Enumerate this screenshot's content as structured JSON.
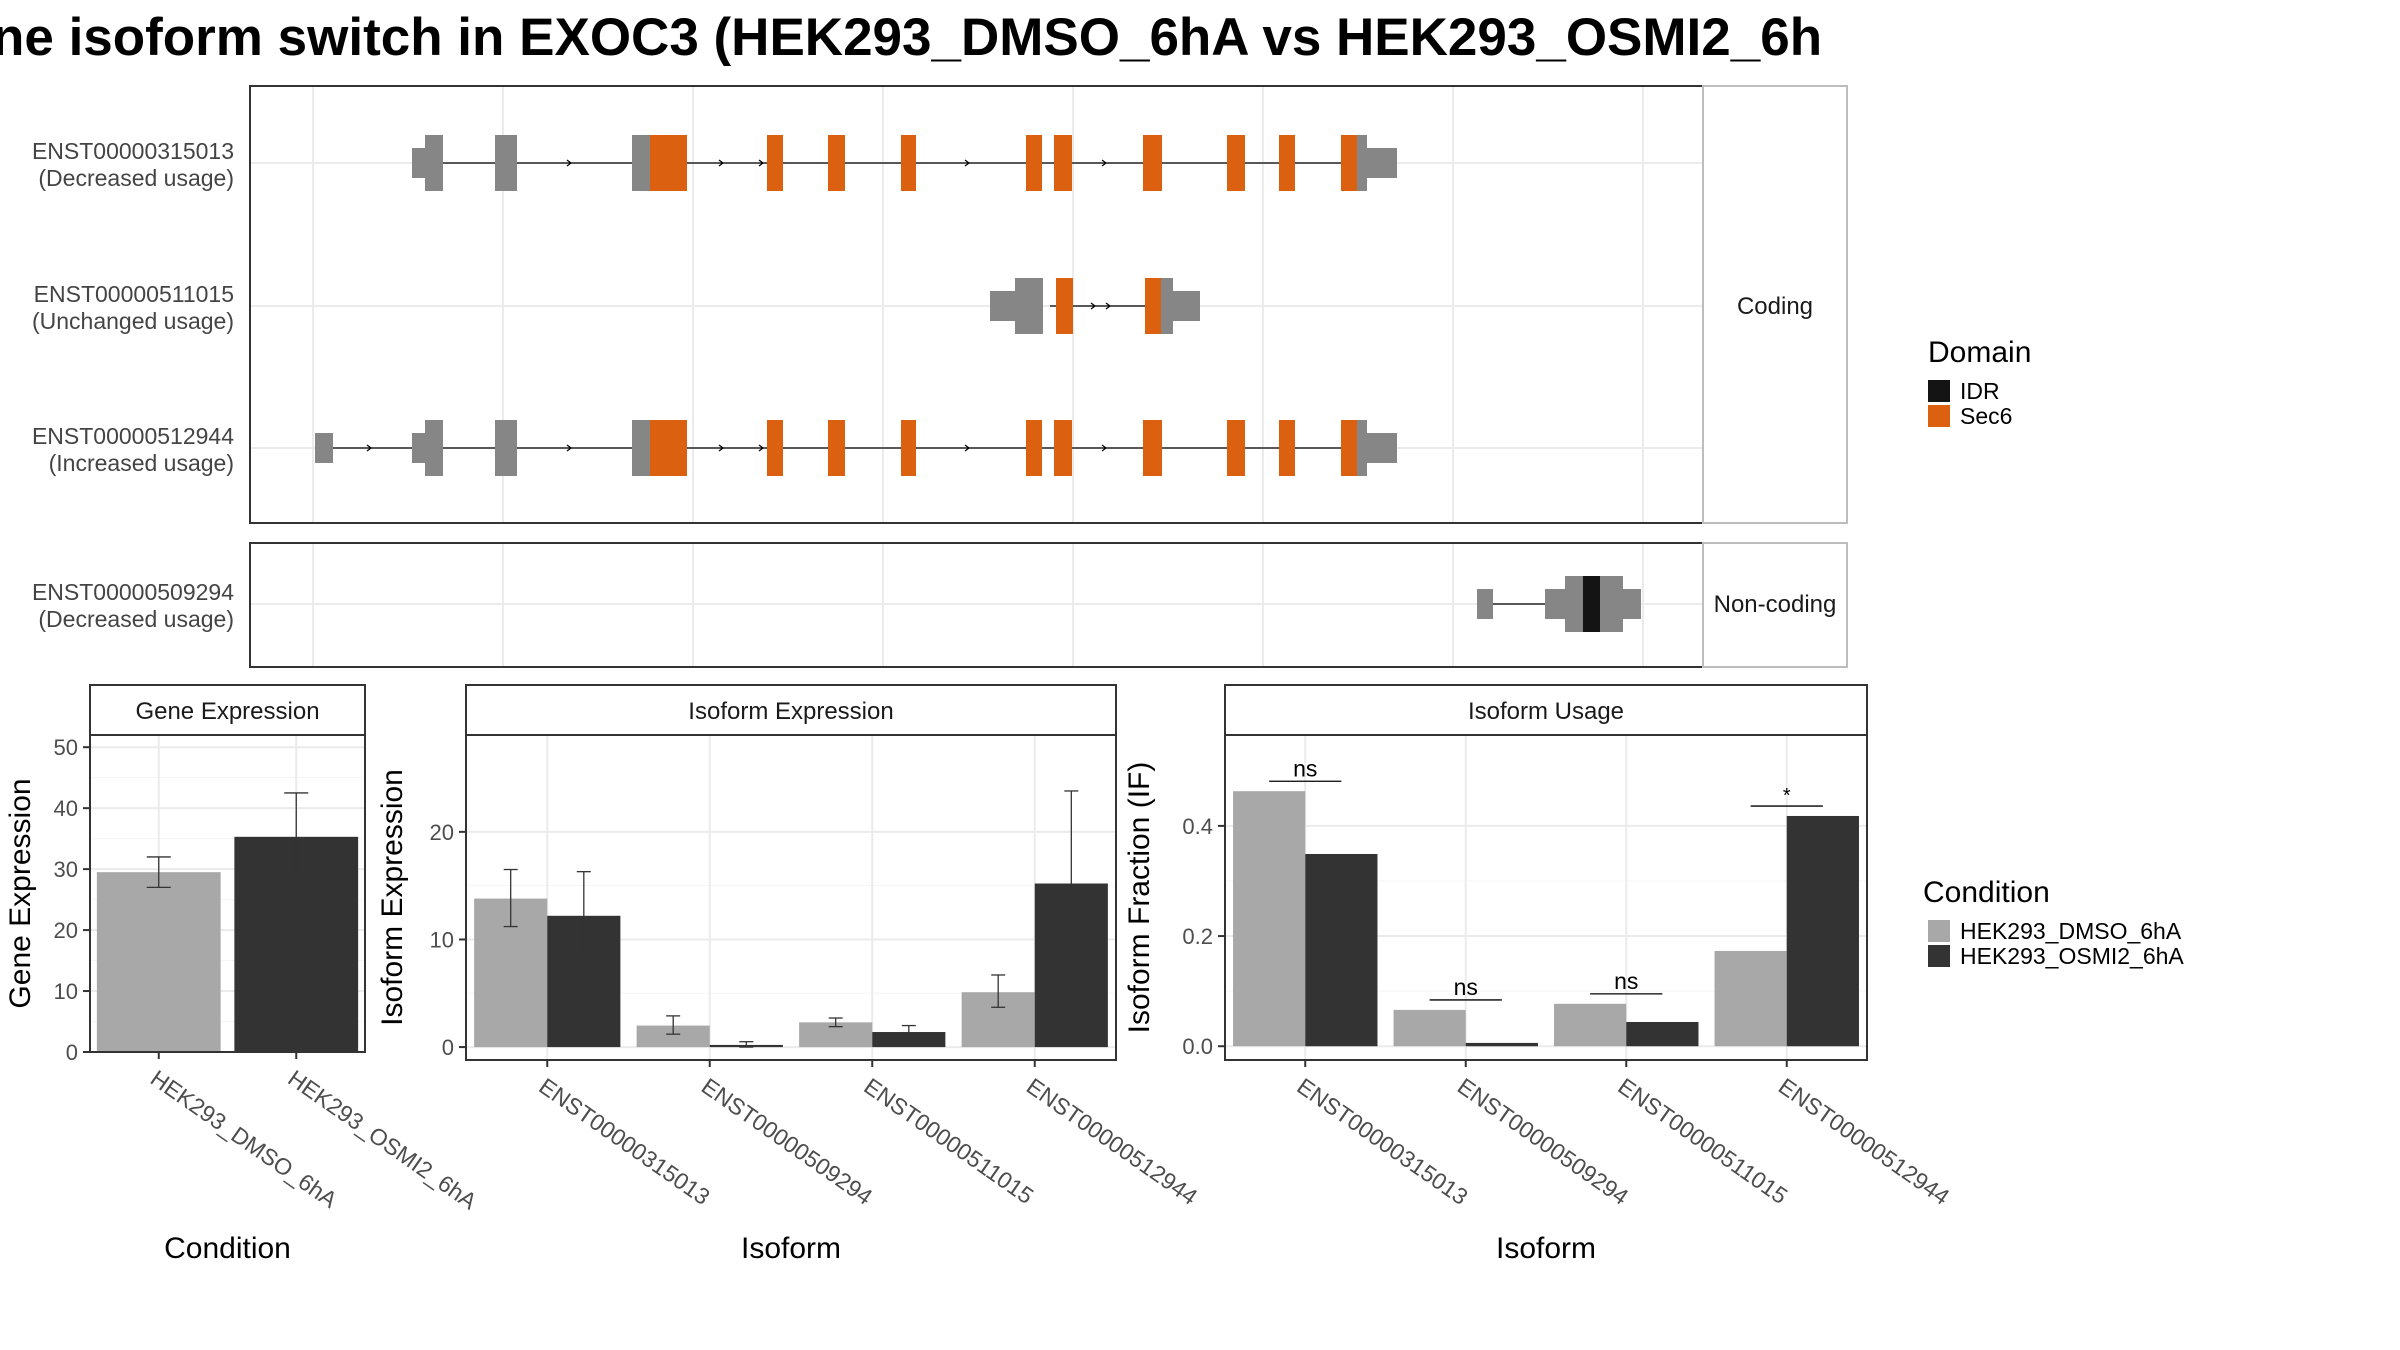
{
  "chart_data": [
    {
      "type": "gene-structure",
      "title": "ne isoform switch in EXOC3 (HEK293_DMSO_6hA vs HEK293_OSMI2_6h",
      "legend": {
        "title": "Domain",
        "entries": [
          {
            "name": "IDR",
            "color": "#141414"
          },
          {
            "name": "Sec6",
            "color": "#db6010"
          }
        ]
      },
      "panels": [
        {
          "label": "Coding",
          "isoforms": [
            {
              "id": "ENST00000315013",
              "usage": "(Decreased usage)"
            },
            {
              "id": "ENST00000511015",
              "usage": "(Unchanged usage)"
            },
            {
              "id": "ENST00000512944",
              "usage": "(Increased usage)"
            }
          ]
        },
        {
          "label": "Non-coding",
          "isoforms": [
            {
              "id": "ENST00000509294",
              "usage": "(Decreased usage)"
            }
          ]
        }
      ]
    },
    {
      "type": "bar",
      "title": "Gene Expression",
      "xlabel": "Condition",
      "ylabel": "Gene Expression",
      "ylim": [
        0,
        52
      ],
      "yticks": [
        0,
        10,
        20,
        30,
        40,
        50
      ],
      "categories": [
        "HEK293_DMSO_6hA",
        "HEK293_OSMI2_6hA"
      ],
      "values": [
        29.5,
        35.3
      ],
      "errors": [
        [
          27.0,
          32.0
        ],
        [
          28.2,
          42.5
        ]
      ],
      "colors": [
        "#a8a8a8",
        "#333333"
      ]
    },
    {
      "type": "bar",
      "title": "Isoform Expression",
      "xlabel": "Isoform",
      "ylabel": "Isoform Expression",
      "ylim": [
        -1.2,
        29
      ],
      "yticks": [
        0,
        10,
        20
      ],
      "categories": [
        "ENST00000315013",
        "ENST00000509294",
        "ENST00000511015",
        "ENST00000512944"
      ],
      "series": [
        {
          "name": "HEK293_DMSO_6hA",
          "values": [
            13.8,
            2.0,
            2.3,
            5.1
          ],
          "errors": [
            [
              11.2,
              16.5
            ],
            [
              1.2,
              2.9
            ],
            [
              1.9,
              2.7
            ],
            [
              3.7,
              6.7
            ]
          ]
        },
        {
          "name": "HEK293_OSMI2_6hA",
          "values": [
            12.2,
            0.2,
            1.4,
            15.2
          ],
          "errors": [
            [
              8.2,
              16.3
            ],
            [
              0.0,
              0.5
            ],
            [
              0.8,
              2.0
            ],
            [
              6.8,
              23.8
            ]
          ]
        }
      ]
    },
    {
      "type": "bar",
      "title": "Isoform Usage",
      "xlabel": "Isoform",
      "ylabel": "Isoform Fraction (IF)",
      "ylim": [
        -0.025,
        0.565
      ],
      "yticks": [
        0.0,
        0.2,
        0.4
      ],
      "ytick_labels": [
        "0.0",
        "0.2",
        "0.4"
      ],
      "categories": [
        "ENST00000315013",
        "ENST00000509294",
        "ENST00000511015",
        "ENST00000512944"
      ],
      "series": [
        {
          "name": "HEK293_DMSO_6hA",
          "values": [
            0.463,
            0.066,
            0.077,
            0.173
          ]
        },
        {
          "name": "HEK293_OSMI2_6hA",
          "values": [
            0.349,
            0.006,
            0.044,
            0.418
          ]
        }
      ],
      "significance": [
        "ns",
        "ns",
        "ns",
        "*"
      ],
      "legend": {
        "title": "Condition",
        "entries": [
          {
            "name": "HEK293_DMSO_6hA",
            "color": "#a8a8a8"
          },
          {
            "name": "HEK293_OSMI2_6hA",
            "color": "#333333"
          }
        ]
      }
    }
  ]
}
